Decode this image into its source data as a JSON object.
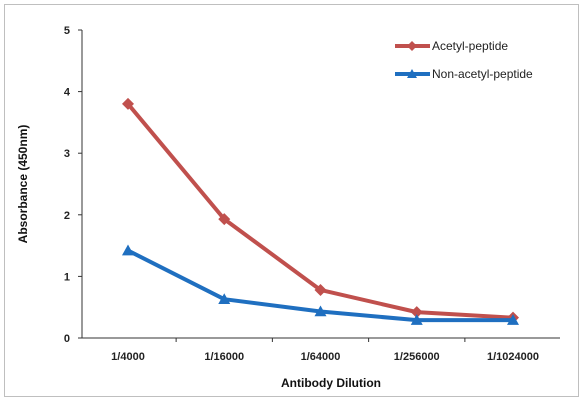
{
  "chart_data": {
    "type": "line",
    "categories": [
      "1/4000",
      "1/16000",
      "1/64000",
      "1/256000",
      "1/1024000"
    ],
    "series": [
      {
        "name": "Acetyl-peptide",
        "values": [
          3.8,
          1.93,
          0.78,
          0.42,
          0.33
        ],
        "color": "#c0504d",
        "marker": "diamond"
      },
      {
        "name": "Non-acetyl-peptide",
        "values": [
          1.42,
          0.63,
          0.43,
          0.29,
          0.29
        ],
        "color": "#1f6fc0",
        "marker": "triangle"
      }
    ],
    "xlabel": "Antibody Dilution",
    "ylabel": "Absorbance (450nm)",
    "ylim": [
      0,
      5
    ],
    "yticks": [
      "0",
      "1",
      "2",
      "3",
      "4",
      "5"
    ],
    "grid": false,
    "legend": "top-right"
  }
}
